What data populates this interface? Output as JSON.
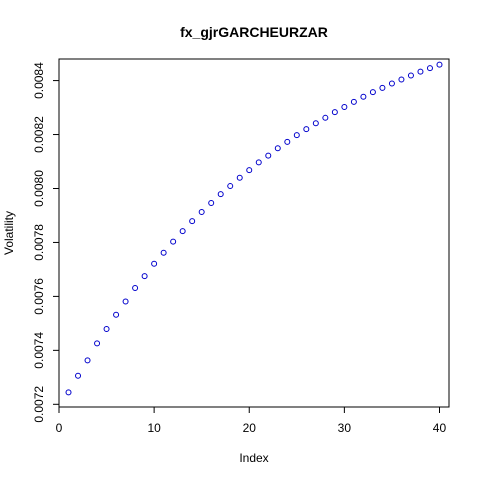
{
  "chart_data": {
    "type": "scatter",
    "title": "fx_gjrGARCHEURZAR",
    "xlabel": "Index",
    "ylabel": "Volatility",
    "xlim": [
      0,
      41
    ],
    "ylim": [
      0.00719,
      0.00848
    ],
    "xticks": [
      0,
      10,
      20,
      30,
      40
    ],
    "yticks": [
      0.0072,
      0.0074,
      0.0076,
      0.0078,
      0.008,
      0.0082,
      0.0084
    ],
    "ytick_labels": [
      "0.0072",
      "0.0074",
      "0.0076",
      "0.0078",
      "0.0080",
      "0.0082",
      "0.0084"
    ],
    "xtick_labels": [
      "0",
      "10",
      "20",
      "30",
      "40"
    ],
    "grid": false,
    "point_color": "#0000cc",
    "series": [
      {
        "x": [
          1,
          2,
          3,
          4,
          5,
          6,
          7,
          8,
          9,
          10,
          11,
          12,
          13,
          14,
          15,
          16,
          17,
          18,
          19,
          20,
          21,
          22,
          23,
          24,
          25,
          26,
          27,
          28,
          29,
          30,
          31,
          32,
          33,
          34,
          35,
          36,
          37,
          38,
          39,
          40
        ],
        "values": [
          0.007244,
          0.007306,
          0.007363,
          0.007426,
          0.007479,
          0.007532,
          0.007581,
          0.007631,
          0.007675,
          0.007721,
          0.007762,
          0.007803,
          0.007842,
          0.007879,
          0.007913,
          0.007946,
          0.007979,
          0.008009,
          0.00804,
          0.008068,
          0.008097,
          0.008122,
          0.008149,
          0.008173,
          0.008198,
          0.00822,
          0.008242,
          0.008262,
          0.008283,
          0.008302,
          0.008321,
          0.00834,
          0.008357,
          0.008373,
          0.008389,
          0.008404,
          0.008419,
          0.008433,
          0.008446,
          0.008459
        ]
      }
    ]
  }
}
